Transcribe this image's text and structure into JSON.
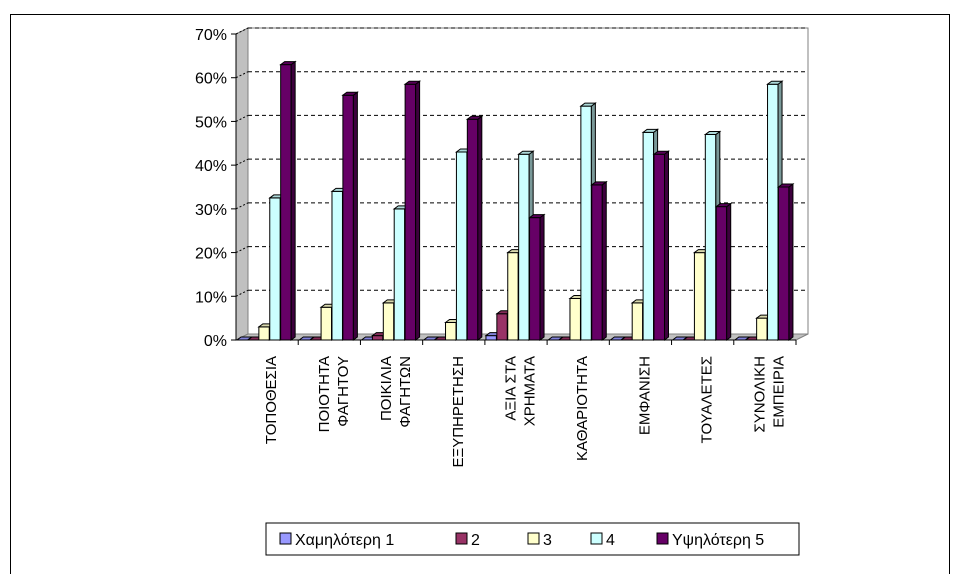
{
  "chart_data": {
    "type": "bar",
    "categories": [
      [
        "ΤΟΠΟΘΕΣΙΑ"
      ],
      [
        "ΠΟΙΟΤΗΤΑ",
        "ΦΑΓΗΤΟΥ"
      ],
      [
        "ΠΟΙΚΙΛΙΑ",
        "ΦΑΓΗΤΩΝ"
      ],
      [
        "ΕΞΥΠΗΡΕΤΗΣΗ"
      ],
      [
        "ΑΞΙΑ ΣΤΑ",
        "ΧΡΗΜΑΤΑ"
      ],
      [
        "ΚΑΘΑΡΙΟΤΗΤΑ"
      ],
      [
        "ΕΜΦΑΝΙΣΗ"
      ],
      [
        "ΤΟΥΑΛΕΤΕΣ"
      ],
      [
        "ΣΥΝΟΛΙΚΗ",
        "ΕΜΠΕΙΡΙΑ"
      ]
    ],
    "series": [
      {
        "name": "Χαμηλότερη 1",
        "color": "#9999FF",
        "values": [
          0,
          0,
          0,
          0,
          1,
          0,
          0,
          0,
          0
        ]
      },
      {
        "name": "2",
        "color": "#993366",
        "values": [
          0,
          0,
          1,
          0,
          6,
          0,
          0,
          0,
          0
        ]
      },
      {
        "name": "3",
        "color": "#FFFFCC",
        "values": [
          3,
          7.5,
          8.5,
          4,
          20,
          9.5,
          8.5,
          20,
          5
        ]
      },
      {
        "name": "4",
        "color": "#CCFFFF",
        "values": [
          32.5,
          34,
          30,
          43,
          42.5,
          53.5,
          47.5,
          47,
          58.5
        ]
      },
      {
        "name": "Υψηλότερη 5",
        "color": "#660066",
        "values": [
          63,
          56,
          58.5,
          50.5,
          28,
          35.5,
          42.5,
          30.5,
          35
        ]
      }
    ],
    "y_ticks": [
      "0%",
      "10%",
      "20%",
      "30%",
      "40%",
      "50%",
      "60%",
      "70%"
    ],
    "ylim": [
      0,
      70
    ],
    "grid": true,
    "legend_position": "bottom"
  }
}
